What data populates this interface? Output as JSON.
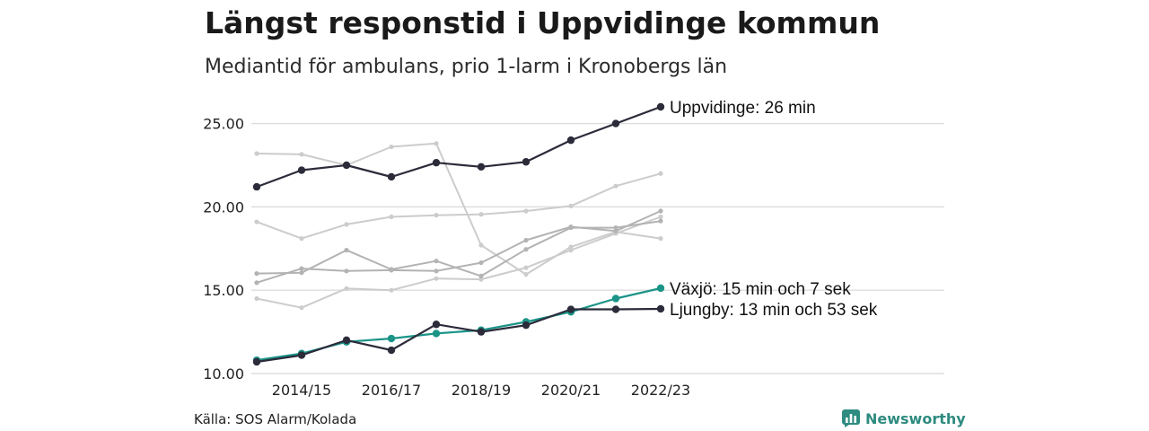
{
  "header": {
    "title": "Längst responstid i Uppvidinge kommun",
    "subtitle": "Mediantid för ambulans, prio 1-larm i Kronobergs län"
  },
  "footer": {
    "source": "Källa: SOS Alarm/Kolada",
    "brand": "Newsworthy",
    "brand_icon": "newsworthy-logo-icon"
  },
  "colors": {
    "highlight_dark": "#2b2b3a",
    "highlight_teal": "#1b9488",
    "background_light": "#cccccc",
    "background_mid": "#b3b3b3",
    "grid": "#dedede",
    "brand": "#2e8b80"
  },
  "chart_data": {
    "type": "line",
    "x": [
      "2013/14",
      "2014/15",
      "2015/16",
      "2016/17",
      "2017/18",
      "2018/19",
      "2019/20",
      "2020/21",
      "2021/22",
      "2022/23"
    ],
    "x_tick_labels": [
      "2014/15",
      "2016/17",
      "2018/19",
      "2020/21",
      "2022/23"
    ],
    "y_ticks": [
      "10.00",
      "15.00",
      "20.00",
      "25.00"
    ],
    "ylim": [
      10,
      26
    ],
    "grid": true,
    "series": [
      {
        "role": "background",
        "values": [
          23.2,
          23.15,
          22.5,
          23.6,
          23.8,
          17.7,
          15.95,
          17.6,
          18.5,
          18.1
        ]
      },
      {
        "role": "background",
        "values": [
          19.1,
          18.1,
          18.95,
          19.4,
          19.5,
          19.55,
          19.75,
          20.05,
          21.25,
          22.0
        ]
      },
      {
        "role": "background",
        "values": [
          14.5,
          13.95,
          15.1,
          15.0,
          15.7,
          15.65,
          16.35,
          17.4,
          18.4,
          19.4
        ]
      },
      {
        "role": "background",
        "values": [
          16.0,
          16.05,
          17.4,
          16.25,
          16.75,
          15.85,
          17.45,
          18.75,
          18.75,
          19.15
        ]
      },
      {
        "role": "background",
        "values": [
          15.45,
          16.3,
          16.15,
          16.2,
          16.15,
          16.65,
          18.0,
          18.8,
          18.55,
          19.75
        ]
      },
      {
        "name": "Uppvidinge: 26 min",
        "role": "highlight_dark",
        "values": [
          21.2,
          22.2,
          22.5,
          21.8,
          22.65,
          22.4,
          22.7,
          24.0,
          25.0,
          26.0
        ]
      },
      {
        "name": "Växjö: 15 min och 7 sek",
        "role": "highlight_teal",
        "values": [
          10.8,
          11.2,
          11.9,
          12.1,
          12.4,
          12.6,
          13.1,
          13.7,
          14.5,
          15.12
        ]
      },
      {
        "name": "Ljungby: 13 min och 53 sek",
        "role": "highlight_dark",
        "values": [
          10.7,
          11.1,
          12.0,
          11.4,
          12.95,
          12.5,
          12.9,
          13.85,
          13.85,
          13.88
        ]
      }
    ]
  }
}
